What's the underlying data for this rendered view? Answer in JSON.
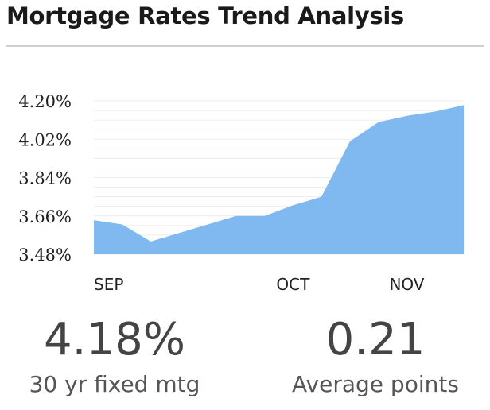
{
  "title": "Mortgage Rates Trend Analysis",
  "colors": {
    "area_fill": "#80b9f0",
    "grid": "#ececec",
    "text": "#333333"
  },
  "chart_data": {
    "type": "area",
    "title": "",
    "xlabel": "",
    "ylabel": "",
    "ylim": [
      3.48,
      4.2
    ],
    "y_ticks": [
      "4.20%",
      "4.02%",
      "3.84%",
      "3.66%",
      "3.48%"
    ],
    "y_tick_values": [
      4.2,
      4.02,
      3.84,
      3.66,
      3.48
    ],
    "x_ticks": [
      {
        "label": "SEP",
        "index": 0
      },
      {
        "label": "OCT",
        "index": 7
      },
      {
        "label": "NOV",
        "index": 11
      }
    ],
    "grid": true,
    "series": [
      {
        "values": [
          3.64,
          3.62,
          3.54,
          3.58,
          3.62,
          3.66,
          3.66,
          3.71,
          3.75,
          4.01,
          4.1,
          4.13,
          4.15,
          4.18
        ]
      }
    ]
  },
  "metrics": [
    {
      "value": "4.18%",
      "label": "30 yr fixed mtg"
    },
    {
      "value": "0.21",
      "label": "Average points"
    }
  ]
}
